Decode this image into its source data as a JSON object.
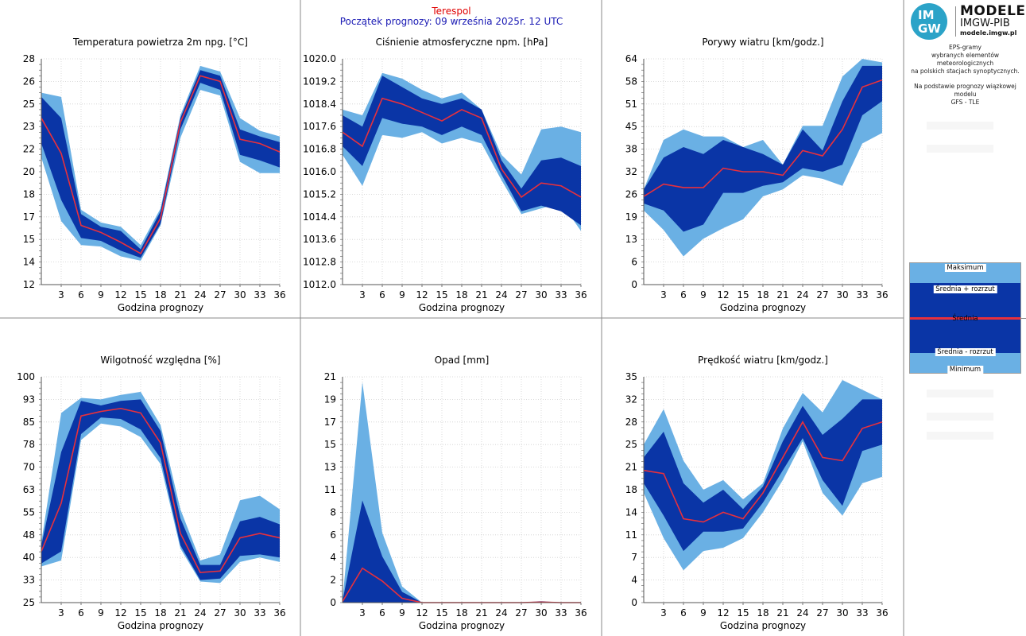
{
  "header": {
    "station": "Terespol",
    "start_label": "Początek prognozy: 09 września 2025r. 12 UTC"
  },
  "logo": {
    "circle_top": "IM",
    "circle_bottom": "GW",
    "title": "MODELE",
    "subtitle": "IMGW-PIB",
    "url": "modele.imgw.pl"
  },
  "description": [
    "EPS-gramy",
    "wybranych elementów meteorologicznych",
    "na polskich stacjach  synoptycznych.",
    "",
    "Na podstawie prognozy wiązkowej modelu",
    "GFS - TLE"
  ],
  "legend": {
    "max": "Maksimum",
    "upper": "Średnia + rozrzut",
    "mean": "Średnia",
    "lower": "Średnia - rozrzut",
    "min": "Minimum"
  },
  "colors": {
    "minmax_band": "#6ab0e4",
    "spread_band": "#0a35a6",
    "mean_line": "#e8303c",
    "station_title": "#e00000",
    "start_title": "#1a1ab4"
  },
  "chart_data": [
    {
      "type": "area",
      "title": "Temperatura powietrza 2m npg. [°C]",
      "xlabel": "Godzina prognozy",
      "ylabel": "",
      "x": [
        0,
        3,
        6,
        9,
        12,
        15,
        18,
        21,
        24,
        27,
        30,
        33,
        36
      ],
      "x_ticks": [
        "3",
        "6",
        "9",
        "12",
        "15",
        "18",
        "21",
        "24",
        "27",
        "30",
        "33",
        "36"
      ],
      "y_ticks": [
        "12",
        "14",
        "15",
        "17",
        "18",
        "20",
        "22",
        "23",
        "25",
        "26",
        "28"
      ],
      "ylim": [
        12,
        28
      ],
      "grid": true,
      "series": [
        {
          "name": "Maksimum",
          "values": [
            25.6,
            25.3,
            17.3,
            16.4,
            16.1,
            14.8,
            17.4,
            24.0,
            27.5,
            27.1,
            23.8,
            22.9,
            22.5
          ]
        },
        {
          "name": "Średnia + rozrzut",
          "values": [
            25.3,
            23.8,
            17.0,
            16.1,
            15.8,
            14.5,
            17.2,
            23.8,
            27.2,
            26.8,
            23.0,
            22.5,
            22.1
          ]
        },
        {
          "name": "Średnia",
          "values": [
            23.8,
            21.3,
            16.2,
            15.7,
            15.0,
            14.2,
            16.7,
            23.5,
            26.8,
            26.4,
            22.3,
            22.0,
            21.4
          ]
        },
        {
          "name": "Średnia - rozrzut",
          "values": [
            22.0,
            18.0,
            15.3,
            15.1,
            14.4,
            13.9,
            16.3,
            23.0,
            26.3,
            25.8,
            21.2,
            20.8,
            20.3
          ]
        },
        {
          "name": "Minimum",
          "values": [
            21.0,
            16.5,
            14.8,
            14.7,
            14.0,
            13.7,
            16.2,
            22.4,
            25.8,
            25.4,
            20.7,
            19.9,
            19.9
          ]
        }
      ]
    },
    {
      "type": "area",
      "title": "Ciśnienie atmosferyczne npm. [hPa]",
      "xlabel": "Godzina prognozy",
      "ylabel": "",
      "x": [
        0,
        3,
        6,
        9,
        12,
        15,
        18,
        21,
        24,
        27,
        30,
        33,
        36
      ],
      "x_ticks": [
        "3",
        "6",
        "9",
        "12",
        "15",
        "18",
        "21",
        "24",
        "27",
        "30",
        "33",
        "36"
      ],
      "y_ticks": [
        "1012.0",
        "1012.8",
        "1013.6",
        "1014.4",
        "1015.2",
        "1016.0",
        "1016.8",
        "1017.6",
        "1018.4",
        "1019.2",
        "1020.0"
      ],
      "ylim": [
        1012.0,
        1020.0
      ],
      "grid": true,
      "series": [
        {
          "name": "Maksimum",
          "values": [
            1018.2,
            1018.0,
            1019.5,
            1019.3,
            1018.9,
            1018.6,
            1018.8,
            1018.2,
            1016.6,
            1015.9,
            1017.5,
            1017.6,
            1017.4
          ]
        },
        {
          "name": "Średnia + rozrzut",
          "values": [
            1018.0,
            1017.6,
            1019.4,
            1019.0,
            1018.6,
            1018.4,
            1018.6,
            1018.2,
            1016.4,
            1015.4,
            1016.4,
            1016.5,
            1016.2
          ]
        },
        {
          "name": "Średnia",
          "values": [
            1017.4,
            1016.9,
            1018.6,
            1018.4,
            1018.1,
            1017.8,
            1018.2,
            1017.9,
            1016.1,
            1015.1,
            1015.6,
            1015.5,
            1015.1
          ]
        },
        {
          "name": "Średnia - rozrzut",
          "values": [
            1016.9,
            1016.2,
            1017.9,
            1017.7,
            1017.6,
            1017.3,
            1017.6,
            1017.3,
            1015.9,
            1014.6,
            1014.8,
            1014.6,
            1014.1
          ]
        },
        {
          "name": "Minimum",
          "values": [
            1016.6,
            1015.5,
            1017.3,
            1017.2,
            1017.4,
            1017.0,
            1017.2,
            1017.0,
            1015.7,
            1014.5,
            1014.7,
            1014.9,
            1013.9
          ]
        }
      ]
    },
    {
      "type": "area",
      "title": "Porywy wiatru [km/godz.]",
      "xlabel": "Godzina prognozy",
      "ylabel": "",
      "x": [
        0,
        3,
        6,
        9,
        12,
        15,
        18,
        21,
        24,
        27,
        30,
        33,
        36
      ],
      "x_ticks": [
        "3",
        "6",
        "9",
        "12",
        "15",
        "18",
        "21",
        "24",
        "27",
        "30",
        "33",
        "36"
      ],
      "y_ticks": [
        "0",
        "6",
        "13",
        "19",
        "26",
        "32",
        "38",
        "45",
        "51",
        "58",
        "64"
      ],
      "ylim": [
        0,
        64
      ],
      "grid": true,
      "series": [
        {
          "name": "Maksimum",
          "values": [
            27,
            41,
            44,
            42,
            42,
            39,
            41,
            34,
            45,
            45,
            59,
            64,
            63
          ]
        },
        {
          "name": "Średnia + rozrzut",
          "values": [
            27,
            36,
            39,
            37,
            41,
            39,
            37,
            34,
            44,
            38,
            52,
            62,
            62
          ]
        },
        {
          "name": "Średnia",
          "values": [
            25,
            28.5,
            27.5,
            27.5,
            33,
            32,
            32,
            31,
            38,
            36.5,
            44,
            56,
            58
          ]
        },
        {
          "name": "Średnia - rozrzut",
          "values": [
            23,
            21,
            15,
            17,
            26,
            26,
            28,
            29,
            33,
            32,
            34,
            48,
            52
          ]
        },
        {
          "name": "Minimum",
          "values": [
            21,
            15.5,
            8,
            13,
            16,
            18.5,
            25,
            27,
            31,
            30,
            28,
            40,
            43
          ]
        }
      ]
    },
    {
      "type": "area",
      "title": "Wilgotność względna [%]",
      "xlabel": "Godzina prognozy",
      "ylabel": "",
      "x": [
        0,
        3,
        6,
        9,
        12,
        15,
        18,
        21,
        24,
        27,
        30,
        33,
        36
      ],
      "x_ticks": [
        "3",
        "6",
        "9",
        "12",
        "15",
        "18",
        "21",
        "24",
        "27",
        "30",
        "33",
        "36"
      ],
      "y_ticks": [
        "25",
        "33",
        "40",
        "48",
        "55",
        "63",
        "70",
        "78",
        "85",
        "93",
        "100"
      ],
      "ylim": [
        25,
        100
      ],
      "grid": true,
      "series": [
        {
          "name": "Maksimum",
          "values": [
            45,
            88,
            93,
            92.5,
            94,
            95,
            84,
            56,
            39,
            41,
            59,
            60.5,
            56
          ]
        },
        {
          "name": "Średnia + rozrzut",
          "values": [
            44,
            75,
            92,
            90.5,
            92,
            92.5,
            82,
            53,
            37.5,
            37.5,
            52,
            53.5,
            51
          ]
        },
        {
          "name": "Średnia",
          "values": [
            42,
            58,
            87,
            88.5,
            89.5,
            88,
            78,
            48,
            35,
            35.5,
            46.5,
            48,
            46.5
          ]
        },
        {
          "name": "Średnia - rozrzut",
          "values": [
            38,
            42,
            81,
            86.5,
            86,
            82.5,
            73,
            44,
            32.5,
            33,
            40.5,
            41,
            40
          ]
        },
        {
          "name": "Minimum",
          "values": [
            37,
            39,
            79,
            84.5,
            83.5,
            80,
            71,
            43,
            32,
            31.5,
            38.5,
            40,
            38.5
          ]
        }
      ]
    },
    {
      "type": "area",
      "title": "Opad [mm]",
      "xlabel": "Godzina prognozy",
      "ylabel": "",
      "x": [
        0,
        3,
        6,
        9,
        12,
        15,
        18,
        21,
        24,
        27,
        30,
        33,
        36
      ],
      "x_ticks": [
        "3",
        "6",
        "9",
        "12",
        "15",
        "18",
        "21",
        "24",
        "27",
        "30",
        "33",
        "36"
      ],
      "y_ticks": [
        "0",
        "2",
        "4",
        "6",
        "8",
        "11",
        "13",
        "15",
        "17",
        "19",
        "21"
      ],
      "ylim": [
        0,
        21
      ],
      "grid": true,
      "series": [
        {
          "name": "Maksimum",
          "values": [
            0.2,
            20.5,
            6.5,
            1.5,
            0,
            0,
            0,
            0,
            0,
            0,
            0.15,
            0,
            0
          ]
        },
        {
          "name": "Średnia + rozrzut",
          "values": [
            0.15,
            9.5,
            4.3,
            1.0,
            0,
            0,
            0,
            0,
            0,
            0,
            0.1,
            0,
            0
          ]
        },
        {
          "name": "Średnia",
          "values": [
            0.1,
            3.2,
            2.0,
            0.4,
            0,
            0,
            0,
            0,
            0,
            0,
            0.05,
            0,
            0
          ]
        },
        {
          "name": "Średnia - rozrzut",
          "values": [
            0,
            0,
            0,
            0,
            0,
            0,
            0,
            0,
            0,
            0,
            0,
            0,
            0
          ]
        },
        {
          "name": "Minimum",
          "values": [
            0,
            0,
            0,
            0,
            0,
            0,
            0,
            0,
            0,
            0,
            0,
            0,
            0
          ]
        }
      ]
    },
    {
      "type": "area",
      "title": "Prędkość wiatru [km/godz.]",
      "xlabel": "Godzina prognozy",
      "ylabel": "",
      "x": [
        0,
        3,
        6,
        9,
        12,
        15,
        18,
        21,
        24,
        27,
        30,
        33,
        36
      ],
      "x_ticks": [
        "3",
        "6",
        "9",
        "12",
        "15",
        "18",
        "21",
        "24",
        "27",
        "30",
        "33",
        "36"
      ],
      "y_ticks": [
        "0",
        "4",
        "7",
        "11",
        "14",
        "18",
        "21",
        "25",
        "28",
        "32",
        "35"
      ],
      "ylim": [
        0,
        35
      ],
      "grid": true,
      "series": [
        {
          "name": "Maksimum",
          "values": [
            24.5,
            30,
            22,
            17.5,
            19,
            16,
            18.5,
            27,
            32.5,
            29.5,
            34.5,
            33,
            31.5
          ]
        },
        {
          "name": "Średnia + rozrzut",
          "values": [
            22.5,
            26.5,
            18.5,
            15.5,
            17.5,
            14.5,
            18,
            25,
            30.5,
            26,
            28.5,
            31.5,
            31.5
          ]
        },
        {
          "name": "Średnia",
          "values": [
            20.5,
            20,
            13,
            12.5,
            14,
            13,
            17,
            22.5,
            28,
            22.5,
            22,
            27,
            28
          ]
        },
        {
          "name": "Średnia - rozrzut",
          "values": [
            18.5,
            13.5,
            8,
            11,
            11,
            11.5,
            15.5,
            20.5,
            25.5,
            19,
            15,
            23.5,
            24.5
          ]
        },
        {
          "name": "Minimum",
          "values": [
            17,
            10,
            5,
            8,
            8.5,
            10,
            14,
            19,
            25,
            17,
            13.5,
            18.5,
            19.5
          ]
        }
      ]
    }
  ]
}
